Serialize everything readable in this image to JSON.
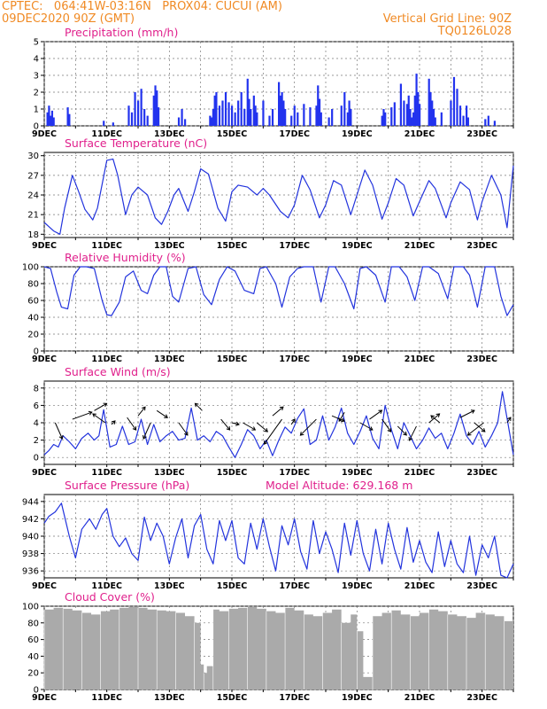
{
  "header": {
    "line1_left": "CPTEC:   064:41W-03:16N   PROX04: CUCUI (AM)",
    "line2_left": "09DEC2020 90Z (GMT)",
    "line2_right": "Vertical Grid Line: 90Z",
    "line3_right": "TQ0126L028"
  },
  "colors": {
    "header": "#f08a24",
    "title": "#e0208c",
    "line": "#2233dd",
    "bar": "#2233ee",
    "cloud": "#aaaaaa",
    "arrow": "#000000"
  },
  "x_axis": {
    "start_day": 9,
    "end_day": 24,
    "tick_labels": [
      "9DEC",
      "11DEC",
      "13DEC",
      "15DEC",
      "17DEC",
      "19DEC",
      "21DEC",
      "23DEC"
    ],
    "tick_days": [
      9,
      11,
      13,
      15,
      17,
      19,
      21,
      23
    ]
  },
  "chart_data": [
    {
      "type": "bar",
      "title": "Precipitation (mm/h)",
      "ylim": [
        0,
        5
      ],
      "yticks": [
        0,
        1,
        2,
        3,
        4,
        5
      ],
      "x": [
        9.1,
        9.15,
        9.2,
        9.25,
        9.3,
        9.75,
        9.8,
        10.9,
        11.2,
        11.7,
        11.8,
        11.9,
        12.0,
        12.1,
        12.2,
        12.3,
        12.5,
        12.55,
        12.6,
        12.65,
        13.3,
        13.4,
        13.5,
        14.3,
        14.35,
        14.4,
        14.45,
        14.5,
        14.6,
        14.7,
        14.8,
        14.9,
        15.0,
        15.1,
        15.2,
        15.3,
        15.4,
        15.5,
        15.55,
        15.6,
        15.7,
        15.75,
        15.8,
        16.0,
        16.2,
        16.3,
        16.5,
        16.55,
        16.6,
        16.65,
        16.7,
        16.9,
        17.0,
        17.1,
        17.3,
        17.5,
        17.7,
        17.75,
        17.8,
        17.85,
        18.1,
        18.2,
        18.5,
        18.6,
        18.7,
        18.75,
        18.8,
        19.8,
        19.85,
        19.9,
        20.1,
        20.2,
        20.4,
        20.5,
        20.6,
        20.65,
        20.7,
        20.75,
        20.8,
        20.85,
        20.9,
        20.95,
        21.0,
        21.3,
        21.35,
        21.4,
        21.45,
        21.5,
        21.7,
        22.0,
        22.1,
        22.2,
        22.3,
        22.4,
        22.5,
        22.55,
        23.1,
        23.2,
        23.4
      ],
      "values": [
        0.8,
        1.2,
        0.6,
        0.9,
        0.5,
        1.1,
        0.7,
        0.3,
        0.2,
        1.2,
        0.8,
        2.0,
        1.5,
        2.2,
        1.0,
        0.6,
        1.8,
        2.4,
        2.1,
        1.1,
        0.5,
        1.0,
        0.4,
        0.6,
        0.5,
        1.0,
        1.8,
        2.0,
        1.2,
        1.5,
        2.0,
        1.4,
        1.2,
        0.8,
        1.5,
        2.0,
        1.0,
        2.8,
        1.6,
        1.0,
        1.8,
        1.2,
        0.8,
        1.5,
        0.6,
        1.0,
        2.6,
        1.8,
        2.0,
        1.5,
        1.0,
        0.6,
        1.2,
        0.8,
        1.3,
        1.1,
        1.2,
        2.4,
        1.6,
        0.8,
        0.5,
        1.0,
        1.2,
        2.0,
        0.8,
        1.5,
        1.0,
        0.6,
        1.0,
        0.8,
        1.1,
        1.4,
        2.5,
        1.5,
        1.3,
        1.8,
        1.0,
        0.5,
        0.8,
        1.8,
        3.1,
        2.0,
        1.3,
        2.8,
        2.0,
        1.5,
        1.0,
        0.5,
        0.8,
        1.5,
        2.9,
        2.2,
        1.2,
        0.6,
        1.2,
        0.5,
        0.4,
        0.6,
        0.3
      ]
    },
    {
      "type": "line",
      "title": "Surface Temperature (nC)",
      "ylim": [
        17.5,
        30.5
      ],
      "yticks": [
        18,
        21,
        24,
        27,
        30
      ],
      "x": [
        9.0,
        9.3,
        9.5,
        9.65,
        9.9,
        10.1,
        10.3,
        10.55,
        10.7,
        11.0,
        11.2,
        11.35,
        11.6,
        11.8,
        12.0,
        12.3,
        12.55,
        12.75,
        12.95,
        13.15,
        13.3,
        13.6,
        13.8,
        14.0,
        14.25,
        14.55,
        14.8,
        15.0,
        15.2,
        15.5,
        15.8,
        16.0,
        16.2,
        16.55,
        16.8,
        17.0,
        17.25,
        17.5,
        17.8,
        18.0,
        18.25,
        18.5,
        18.8,
        19.0,
        19.25,
        19.5,
        19.8,
        20.0,
        20.25,
        20.5,
        20.8,
        21.0,
        21.3,
        21.5,
        21.85,
        22.0,
        22.3,
        22.6,
        22.85,
        23.0,
        23.3,
        23.6,
        23.8,
        24.0
      ],
      "values": [
        19.8,
        18.5,
        18.0,
        22.0,
        27.0,
        24.5,
        21.8,
        20.2,
        22.0,
        29.3,
        29.5,
        27.0,
        21.0,
        24.0,
        25.2,
        24.0,
        20.5,
        19.5,
        21.5,
        24.0,
        25.0,
        21.5,
        24.5,
        28.0,
        27.2,
        22.0,
        20.0,
        24.5,
        25.5,
        25.2,
        24.0,
        25.0,
        24.0,
        21.5,
        20.5,
        22.5,
        27.0,
        24.8,
        20.5,
        22.5,
        26.2,
        25.5,
        21.0,
        24.0,
        27.8,
        25.5,
        20.3,
        22.8,
        26.5,
        25.5,
        20.8,
        23.0,
        26.2,
        25.0,
        20.5,
        22.8,
        26.0,
        24.8,
        20.2,
        23.0,
        27.0,
        24.0,
        19.0,
        28.5
      ]
    },
    {
      "type": "line",
      "title": "Relative Humidity (%)",
      "ylim": [
        0,
        100
      ],
      "yticks": [
        0,
        20,
        40,
        60,
        80,
        100
      ],
      "x": [
        9.0,
        9.2,
        9.4,
        9.55,
        9.75,
        9.95,
        10.15,
        10.35,
        10.6,
        10.85,
        11.0,
        11.15,
        11.4,
        11.6,
        11.85,
        12.1,
        12.3,
        12.5,
        12.7,
        12.9,
        13.1,
        13.3,
        13.6,
        13.85,
        14.1,
        14.35,
        14.6,
        14.85,
        15.1,
        15.4,
        15.7,
        15.9,
        16.1,
        16.4,
        16.6,
        16.85,
        17.1,
        17.3,
        17.6,
        17.85,
        18.1,
        18.3,
        18.6,
        18.9,
        19.1,
        19.3,
        19.6,
        19.9,
        20.1,
        20.35,
        20.6,
        20.85,
        21.1,
        21.3,
        21.6,
        21.9,
        22.1,
        22.4,
        22.6,
        22.85,
        23.1,
        23.4,
        23.6,
        23.8,
        24.0
      ],
      "values": [
        100.0,
        98.0,
        70.0,
        52.0,
        50.0,
        90.0,
        100.0,
        100.0,
        98.0,
        60.0,
        43.0,
        42.0,
        58.0,
        88.0,
        95.0,
        72.0,
        68.0,
        90.0,
        100.0,
        100.0,
        65.0,
        58.0,
        98.0,
        100.0,
        67.0,
        55.0,
        85.0,
        100.0,
        95.0,
        72.0,
        68.0,
        98.0,
        100.0,
        80.0,
        52.0,
        88.0,
        98.0,
        100.0,
        100.0,
        58.0,
        100.0,
        100.0,
        80.0,
        50.0,
        98.0,
        100.0,
        90.0,
        58.0,
        100.0,
        100.0,
        88.0,
        60.0,
        100.0,
        100.0,
        92.0,
        62.0,
        100.0,
        100.0,
        90.0,
        52.0,
        100.0,
        100.0,
        65.0,
        42.0,
        55.0
      ]
    },
    {
      "type": "line",
      "title": "Surface Wind (m/s)",
      "ylim": [
        -0.8,
        8.8
      ],
      "yticks": [
        0,
        2,
        4,
        6,
        8
      ],
      "x": [
        9.0,
        9.15,
        9.3,
        9.45,
        9.6,
        9.8,
        10.0,
        10.2,
        10.4,
        10.6,
        10.75,
        10.9,
        11.1,
        11.3,
        11.5,
        11.7,
        11.9,
        12.1,
        12.3,
        12.5,
        12.7,
        12.9,
        13.1,
        13.3,
        13.5,
        13.7,
        13.9,
        14.1,
        14.3,
        14.5,
        14.7,
        14.9,
        15.1,
        15.3,
        15.5,
        15.7,
        15.9,
        16.1,
        16.3,
        16.5,
        16.7,
        16.9,
        17.1,
        17.3,
        17.5,
        17.7,
        17.9,
        18.1,
        18.3,
        18.5,
        18.7,
        18.9,
        19.1,
        19.3,
        19.5,
        19.7,
        19.9,
        20.1,
        20.3,
        20.5,
        20.7,
        20.9,
        21.1,
        21.3,
        21.5,
        21.7,
        21.9,
        22.1,
        22.3,
        22.5,
        22.7,
        22.9,
        23.1,
        23.3,
        23.5,
        23.65,
        23.8,
        24.0
      ],
      "values": [
        0.3,
        0.8,
        1.5,
        1.2,
        2.5,
        1.8,
        1.0,
        2.2,
        2.8,
        2.0,
        2.5,
        5.5,
        1.2,
        1.5,
        3.6,
        1.5,
        1.8,
        4.4,
        1.5,
        3.8,
        1.8,
        2.5,
        3.0,
        2.0,
        2.2,
        5.7,
        2.0,
        2.5,
        1.8,
        3.0,
        2.5,
        1.2,
        0.0,
        1.5,
        3.2,
        2.5,
        1.0,
        2.0,
        0.2,
        2.0,
        3.5,
        2.8,
        4.5,
        5.6,
        1.5,
        2.0,
        4.8,
        2.0,
        3.5,
        5.7,
        2.8,
        1.5,
        3.0,
        4.8,
        2.2,
        1.0,
        6.0,
        3.2,
        1.0,
        4.0,
        2.5,
        1.0,
        2.0,
        3.4,
        2.2,
        2.8,
        1.0,
        2.8,
        5.0,
        2.5,
        1.5,
        3.0,
        1.2,
        2.5,
        4.0,
        7.6,
        4.5,
        0.3
      ],
      "vectors": [
        {
          "x": 9.35,
          "y": 4.0,
          "dx": 8,
          "dy": 18
        },
        {
          "x": 9.9,
          "y": 4.4,
          "dx": 22,
          "dy": -8
        },
        {
          "x": 10.6,
          "y": 5.4,
          "dx": 14,
          "dy": -8
        },
        {
          "x": 10.95,
          "y": 4.0,
          "dx": -14,
          "dy": -10
        },
        {
          "x": 11.15,
          "y": 3.8,
          "dx": 4,
          "dy": -4
        },
        {
          "x": 11.65,
          "y": 4.6,
          "dx": 10,
          "dy": 14
        },
        {
          "x": 12.0,
          "y": 4.8,
          "dx": 8,
          "dy": -10
        },
        {
          "x": 12.4,
          "y": 4.0,
          "dx": -8,
          "dy": 18
        },
        {
          "x": 12.6,
          "y": 5.4,
          "dx": 12,
          "dy": 8
        },
        {
          "x": 13.3,
          "y": 4.0,
          "dx": 10,
          "dy": 14
        },
        {
          "x": 14.05,
          "y": 5.4,
          "dx": -8,
          "dy": -8
        },
        {
          "x": 14.65,
          "y": 4.4,
          "dx": 10,
          "dy": 12
        },
        {
          "x": 15.0,
          "y": 4.0,
          "dx": 8,
          "dy": 2
        },
        {
          "x": 15.35,
          "y": 4.0,
          "dx": 14,
          "dy": 8
        },
        {
          "x": 15.8,
          "y": 4.0,
          "dx": 12,
          "dy": 10
        },
        {
          "x": 16.3,
          "y": 4.8,
          "dx": 12,
          "dy": -10
        },
        {
          "x": 16.6,
          "y": 4.4,
          "dx": -20,
          "dy": 28
        },
        {
          "x": 16.9,
          "y": 3.8,
          "dx": 4,
          "dy": -6
        },
        {
          "x": 17.7,
          "y": 4.4,
          "dx": -18,
          "dy": 18
        },
        {
          "x": 18.2,
          "y": 4.8,
          "dx": 14,
          "dy": 6
        },
        {
          "x": 18.6,
          "y": 5.2,
          "dx": -6,
          "dy": 10
        },
        {
          "x": 19.1,
          "y": 4.0,
          "dx": 14,
          "dy": 8
        },
        {
          "x": 19.4,
          "y": 4.4,
          "dx": 14,
          "dy": -10
        },
        {
          "x": 19.8,
          "y": 4.4,
          "dx": 10,
          "dy": 14
        },
        {
          "x": 20.3,
          "y": 3.6,
          "dx": 10,
          "dy": 10
        },
        {
          "x": 20.9,
          "y": 3.6,
          "dx": -8,
          "dy": 16
        },
        {
          "x": 21.3,
          "y": 4.0,
          "dx": 12,
          "dy": -10
        },
        {
          "x": 21.65,
          "y": 4.0,
          "dx": -10,
          "dy": -8
        },
        {
          "x": 22.3,
          "y": 4.6,
          "dx": 16,
          "dy": -8
        },
        {
          "x": 22.75,
          "y": 4.0,
          "dx": 12,
          "dy": 10
        },
        {
          "x": 23.05,
          "y": 4.0,
          "dx": -18,
          "dy": 14
        },
        {
          "x": 23.8,
          "y": 4.0,
          "dx": 4,
          "dy": -6
        }
      ]
    },
    {
      "type": "line",
      "title": "Surface Pressure (hPa)",
      "subtitle": "Model Altitude: 629.168 m",
      "ylim": [
        935.2,
        944.8
      ],
      "yticks": [
        936,
        938,
        940,
        942,
        944
      ],
      "x": [
        9.0,
        9.15,
        9.35,
        9.55,
        9.8,
        10.0,
        10.2,
        10.45,
        10.65,
        10.85,
        11.0,
        11.2,
        11.4,
        11.6,
        11.8,
        12.0,
        12.2,
        12.4,
        12.6,
        12.8,
        13.0,
        13.2,
        13.4,
        13.6,
        13.8,
        14.0,
        14.2,
        14.4,
        14.6,
        14.8,
        15.0,
        15.2,
        15.4,
        15.6,
        15.8,
        16.0,
        16.2,
        16.4,
        16.6,
        16.8,
        17.0,
        17.2,
        17.4,
        17.6,
        17.8,
        18.0,
        18.2,
        18.4,
        18.6,
        18.8,
        19.0,
        19.2,
        19.4,
        19.6,
        19.8,
        20.0,
        20.2,
        20.4,
        20.6,
        20.8,
        21.0,
        21.2,
        21.4,
        21.6,
        21.8,
        22.0,
        22.2,
        22.4,
        22.6,
        22.8,
        23.0,
        23.2,
        23.4,
        23.6,
        23.8,
        24.0
      ],
      "values": [
        941.5,
        942.3,
        942.8,
        943.8,
        940.0,
        937.5,
        940.8,
        942.0,
        940.8,
        942.5,
        943.2,
        940.0,
        938.8,
        939.8,
        938.0,
        937.2,
        942.2,
        939.5,
        941.5,
        940.0,
        936.8,
        939.8,
        942.0,
        937.5,
        941.2,
        942.5,
        938.5,
        936.8,
        941.8,
        939.5,
        941.8,
        937.5,
        936.8,
        941.5,
        938.5,
        942.0,
        938.8,
        936.0,
        941.2,
        939.0,
        942.0,
        938.2,
        936.2,
        941.8,
        938.0,
        940.5,
        938.5,
        935.8,
        941.5,
        937.8,
        941.8,
        938.0,
        936.0,
        940.8,
        936.8,
        941.5,
        938.5,
        936.2,
        941.0,
        937.0,
        939.5,
        937.0,
        935.8,
        940.5,
        936.5,
        939.5,
        936.8,
        935.8,
        940.0,
        935.5,
        939.0,
        937.5,
        940.0,
        935.5,
        935.2,
        936.8
      ]
    },
    {
      "type": "area",
      "title": "Cloud Cover (%)",
      "ylim": [
        0,
        100
      ],
      "yticks": [
        0,
        20,
        40,
        60,
        80,
        100
      ],
      "x": [
        9.0,
        9.3,
        9.6,
        9.9,
        10.2,
        10.5,
        10.8,
        11.1,
        11.4,
        11.7,
        12.0,
        12.3,
        12.6,
        12.9,
        13.2,
        13.5,
        13.8,
        14.0,
        14.1,
        14.2,
        14.4,
        14.6,
        14.9,
        15.2,
        15.5,
        15.8,
        16.1,
        16.4,
        16.7,
        17.0,
        17.3,
        17.6,
        17.9,
        18.2,
        18.5,
        18.8,
        19.0,
        19.2,
        19.5,
        19.8,
        20.1,
        20.4,
        20.7,
        21.0,
        21.3,
        21.6,
        21.9,
        22.2,
        22.5,
        22.8,
        23.1,
        23.4,
        23.7,
        24.0
      ],
      "values": [
        96,
        98,
        97,
        95,
        92,
        90,
        94,
        96,
        98,
        99,
        98,
        96,
        95,
        94,
        92,
        88,
        80,
        30,
        20,
        28,
        96,
        94,
        97,
        98,
        99,
        97,
        94,
        92,
        98,
        95,
        90,
        88,
        92,
        96,
        80,
        90,
        70,
        15,
        88,
        92,
        95,
        90,
        88,
        92,
        96,
        94,
        90,
        88,
        86,
        92,
        90,
        88,
        82,
        78
      ]
    }
  ]
}
